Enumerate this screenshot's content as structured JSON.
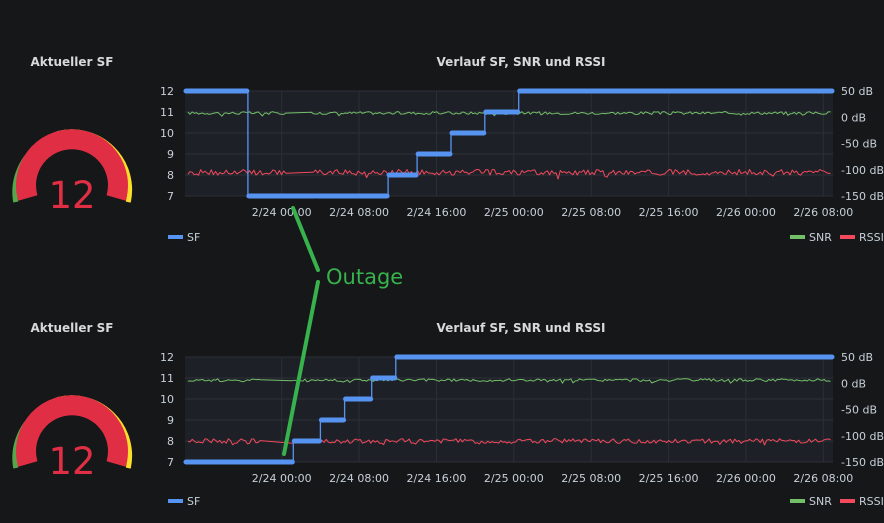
{
  "panels": [
    {
      "gauge": {
        "title": "Aktueller SF",
        "value": "12",
        "min": 7,
        "max": 12
      },
      "chart": {
        "title": "Verlauf SF, SNR und RSSI"
      }
    },
    {
      "gauge": {
        "title": "Aktueller SF",
        "value": "12",
        "min": 7,
        "max": 12
      },
      "chart": {
        "title": "Verlauf SF, SNR und RSSI"
      }
    }
  ],
  "annotation": {
    "label": "Outage"
  },
  "colors": {
    "background": "#161719",
    "sf": "#5794f2",
    "snr": "#73bf69",
    "rssi": "#f2495c",
    "gauge_red": "#e02f44",
    "gauge_yellow": "#fade2a",
    "gauge_green": "#56a64b",
    "annotation": "#37b24d"
  },
  "chart_data": [
    {
      "type": "line",
      "title": "Verlauf SF, SNR und RSSI",
      "x_tick_labels": [
        "2/24 00:00",
        "2/24 08:00",
        "2/24 16:00",
        "2/25 00:00",
        "2/25 08:00",
        "2/25 16:00",
        "2/26 00:00",
        "2/26 08:00"
      ],
      "x_range_hours": [
        -10,
        57
      ],
      "y_left_ticks": [
        "12",
        "11",
        "10",
        "9",
        "8",
        "7"
      ],
      "y_left_range": [
        7,
        12
      ],
      "y_right_ticks": [
        "50 dB",
        "0 dB",
        "-50 dB",
        "-100 dB",
        "-150 dB"
      ],
      "y_right_range": [
        -150,
        50
      ],
      "grid": true,
      "legend": {
        "left": [
          "SF"
        ],
        "right": [
          "SNR",
          "RSSI"
        ],
        "placement": "bottom"
      },
      "series": [
        {
          "name": "SF",
          "axis": "left",
          "steps": [
            [
              -10,
              12
            ],
            [
              -3.5,
              7
            ],
            [
              3.5,
              7
            ],
            [
              11,
              8
            ],
            [
              14,
              9
            ],
            [
              17.5,
              10
            ],
            [
              21,
              11
            ],
            [
              24.5,
              12
            ],
            [
              57,
              12
            ]
          ]
        },
        {
          "name": "SNR",
          "axis": "right",
          "mean_db": 8,
          "range_db": [
            2,
            12
          ],
          "missing_hours": [
            0.5,
            3
          ]
        },
        {
          "name": "RSSI",
          "axis": "right",
          "mean_db": -105,
          "range_db": [
            -118,
            -98
          ],
          "missing_hours": [
            0.5,
            3
          ]
        }
      ]
    },
    {
      "type": "line",
      "title": "Verlauf SF, SNR und RSSI",
      "x_tick_labels": [
        "2/24 00:00",
        "2/24 08:00",
        "2/24 16:00",
        "2/25 00:00",
        "2/25 08:00",
        "2/25 16:00",
        "2/26 00:00",
        "2/26 08:00"
      ],
      "x_range_hours": [
        -10,
        57
      ],
      "y_left_ticks": [
        "12",
        "11",
        "10",
        "9",
        "8",
        "7"
      ],
      "y_left_range": [
        7,
        12
      ],
      "y_right_ticks": [
        "50 dB",
        "0 dB",
        "-50 dB",
        "-100 dB",
        "-150 dB"
      ],
      "y_right_range": [
        -150,
        50
      ],
      "grid": true,
      "legend": {
        "left": [
          "SF"
        ],
        "right": [
          "SNR",
          "RSSI"
        ],
        "placement": "bottom"
      },
      "series": [
        {
          "name": "SF",
          "axis": "left",
          "steps": [
            [
              -10,
              7
            ],
            [
              1.2,
              7
            ],
            [
              1.2,
              8
            ],
            [
              4,
              8
            ],
            [
              4,
              9
            ],
            [
              6.5,
              9
            ],
            [
              6.5,
              10
            ],
            [
              9.3,
              10
            ],
            [
              9.3,
              11
            ],
            [
              11.8,
              11
            ],
            [
              11.8,
              12
            ],
            [
              57,
              12
            ]
          ]
        },
        {
          "name": "SNR",
          "axis": "right",
          "mean_db": 6,
          "range_db": [
            0,
            10
          ],
          "missing_hours": [
            -2,
            1
          ]
        },
        {
          "name": "RSSI",
          "axis": "right",
          "mean_db": -110,
          "range_db": [
            -118,
            -102
          ],
          "missing_hours": [
            -2,
            1
          ]
        }
      ]
    }
  ]
}
